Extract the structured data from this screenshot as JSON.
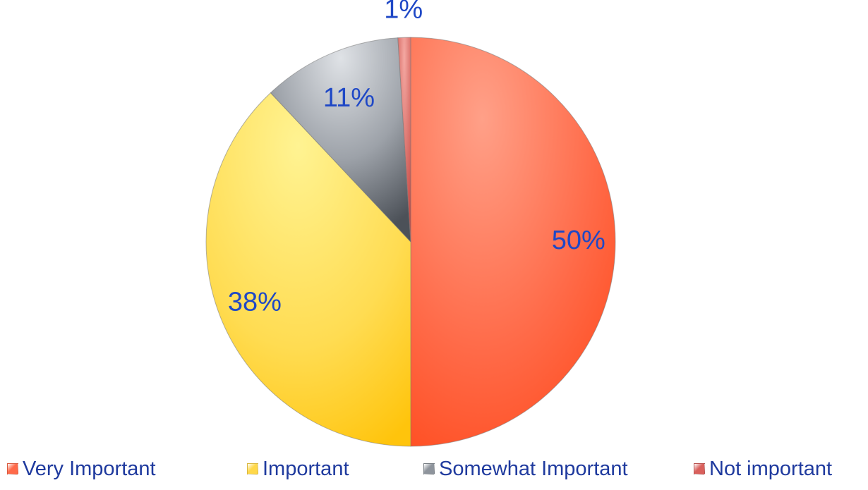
{
  "chart_data": {
    "type": "pie",
    "categories": [
      "Very Important",
      "Important",
      "Somewhat Important",
      "Not important"
    ],
    "values": [
      50,
      38,
      11,
      1
    ],
    "data_labels": [
      "50%",
      "38%",
      "11%",
      "1%"
    ],
    "colors": [
      "#ff6a4a",
      "#ffd84a",
      "#8e949c",
      "#d9605c"
    ],
    "legend_position": "bottom",
    "start_angle": "12 o'clock, clockwise",
    "title": ""
  }
}
